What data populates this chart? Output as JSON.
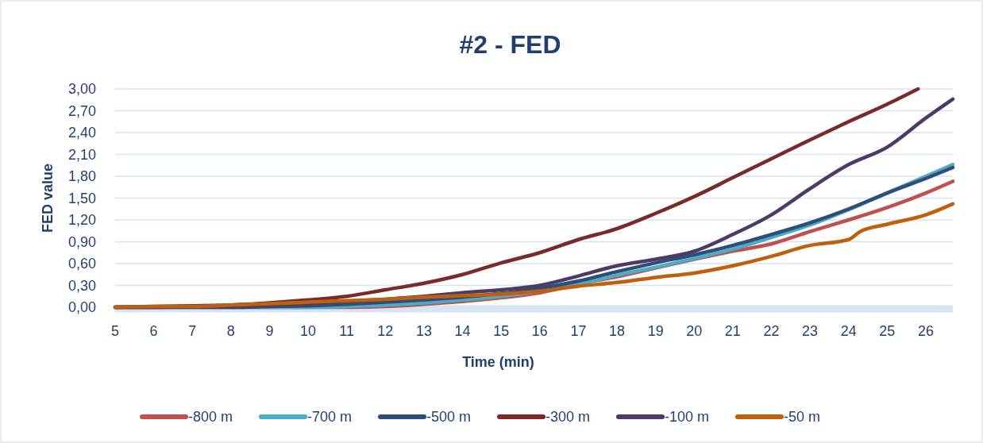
{
  "chart_data": {
    "type": "line",
    "title": "#2 - FED",
    "xlabel": "Time (min)",
    "ylabel": "FED value",
    "x": [
      5,
      6,
      7,
      8,
      9,
      10,
      11,
      12,
      13,
      14,
      15,
      16,
      17,
      18,
      19,
      20,
      21,
      22,
      23,
      24,
      25,
      26,
      26.7
    ],
    "series": [
      {
        "name": "-800 m",
        "color": "#c0504d",
        "values": [
          0,
          0,
          0,
          0,
          0,
          0,
          0,
          0.01,
          0.04,
          0.08,
          0.13,
          0.2,
          0.32,
          0.42,
          0.54,
          0.66,
          0.77,
          0.87,
          1.04,
          1.2,
          1.37,
          1.57,
          1.73
        ]
      },
      {
        "name": "-700 m",
        "color": "#4bacc6",
        "values": [
          null,
          null,
          null,
          0,
          0,
          0,
          0.01,
          0.03,
          0.06,
          0.1,
          0.15,
          0.22,
          0.32,
          0.44,
          0.55,
          0.67,
          0.8,
          0.96,
          1.13,
          1.34,
          1.57,
          1.8,
          1.96
        ]
      },
      {
        "name": "-500 m",
        "color": "#2e4e7a",
        "values": [
          0,
          0,
          0,
          0,
          0.01,
          0.02,
          0.04,
          0.07,
          0.1,
          0.14,
          0.19,
          0.26,
          0.36,
          0.49,
          0.61,
          0.72,
          0.85,
          1.0,
          1.16,
          1.35,
          1.57,
          1.77,
          1.92
        ]
      },
      {
        "name": "-300 m",
        "color": "#7b2a2a",
        "x": [
          5,
          6,
          7,
          8,
          9,
          10,
          11,
          12,
          13,
          14,
          15,
          16,
          17,
          18,
          19,
          20,
          21,
          22,
          23,
          24,
          25,
          25.8
        ],
        "values": [
          0,
          0.01,
          0.02,
          0.03,
          0.06,
          0.1,
          0.15,
          0.24,
          0.33,
          0.45,
          0.61,
          0.75,
          0.93,
          1.08,
          1.29,
          1.52,
          1.78,
          2.04,
          2.3,
          2.55,
          2.79,
          3.0
        ]
      },
      {
        "name": "-100 m",
        "color": "#4e3a66",
        "values": [
          0,
          0,
          0.01,
          0.01,
          0.03,
          0.05,
          0.08,
          0.11,
          0.15,
          0.2,
          0.24,
          0.3,
          0.43,
          0.57,
          0.66,
          0.77,
          1.0,
          1.27,
          1.63,
          1.96,
          2.2,
          2.6,
          2.86
        ]
      },
      {
        "name": "-50 m",
        "color": "#c0600d",
        "x": [
          5,
          6,
          7,
          8,
          9,
          10,
          11,
          12,
          13,
          14,
          15,
          16,
          17,
          18,
          19,
          20,
          21,
          22,
          23,
          24,
          24.3,
          25,
          26,
          26.7
        ],
        "values": [
          0,
          0.01,
          0.01,
          0.03,
          0.05,
          0.07,
          0.09,
          0.11,
          0.14,
          0.16,
          0.18,
          0.22,
          0.29,
          0.34,
          0.41,
          0.47,
          0.57,
          0.7,
          0.85,
          0.93,
          1.04,
          1.14,
          1.27,
          1.42
        ]
      }
    ],
    "xlim": [
      5,
      26.7
    ],
    "xticks": [
      5,
      6,
      7,
      8,
      9,
      10,
      11,
      12,
      13,
      14,
      15,
      16,
      17,
      18,
      19,
      20,
      21,
      22,
      23,
      24,
      25,
      26
    ],
    "ylim": [
      0,
      3
    ],
    "yticks": [
      {
        "value": 0,
        "label": "0,00"
      },
      {
        "value": 0.3,
        "label": "0,30"
      },
      {
        "value": 0.6,
        "label": "0,60"
      },
      {
        "value": 0.9,
        "label": "0,90"
      },
      {
        "value": 1.2,
        "label": "1,20"
      },
      {
        "value": 1.5,
        "label": "1,50"
      },
      {
        "value": 1.8,
        "label": "1,80"
      },
      {
        "value": 2.1,
        "label": "2,10"
      },
      {
        "value": 2.4,
        "label": "2,40"
      },
      {
        "value": 2.7,
        "label": "2,70"
      },
      {
        "value": 3,
        "label": "3,00"
      }
    ],
    "grid": "y",
    "legend": "bottom",
    "marker": "none",
    "line_style": "solid"
  }
}
